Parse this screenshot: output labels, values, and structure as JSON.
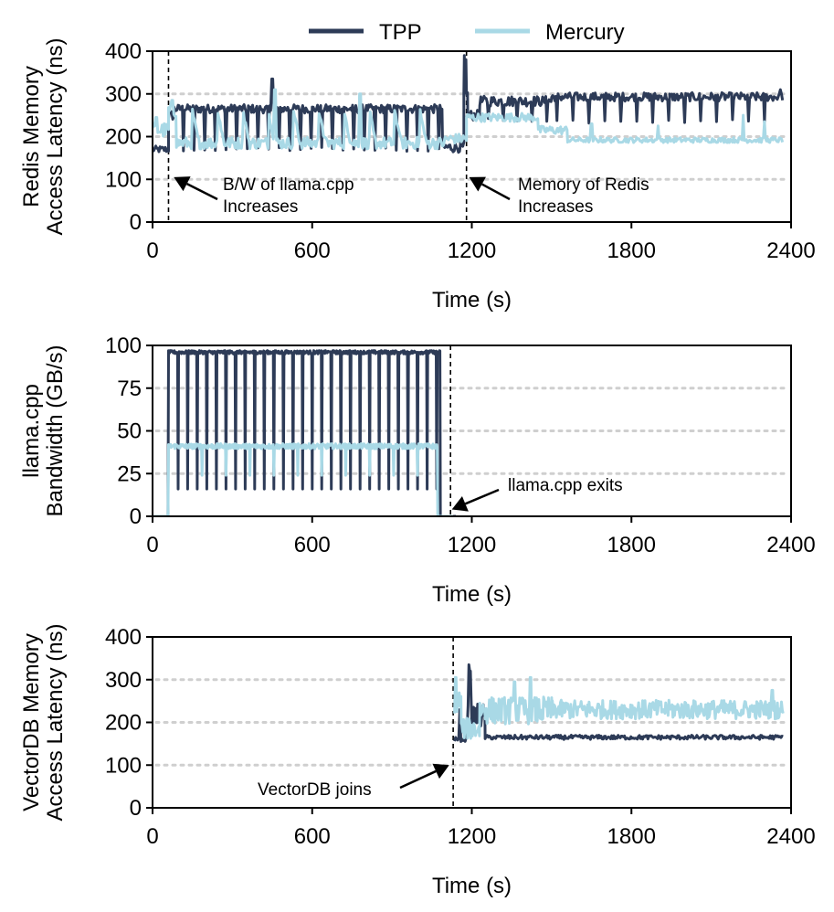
{
  "legend": {
    "tpp": "TPP",
    "mercury": "Mercury"
  },
  "colors": {
    "tpp": "#2d3b57",
    "mercury": "#a9d9e6",
    "grid": "#cfcfcf"
  },
  "chart_data": [
    {
      "id": "redis",
      "type": "line",
      "xlabel": "Time (s)",
      "ylabel_lines": [
        "Redis Memory",
        "Access Latency (ns)"
      ],
      "xlim": [
        0,
        2400
      ],
      "ylim": [
        0,
        400
      ],
      "xticks": [
        0,
        600,
        1200,
        1800,
        2400
      ],
      "yticks": [
        0,
        100,
        200,
        300,
        400
      ],
      "gridlines": [
        100,
        200,
        300
      ],
      "vlines": [
        60,
        1180
      ],
      "series": [
        {
          "name": "TPP",
          "style": "tpp",
          "segments": [
            {
              "x0": 0,
              "x1": 60,
              "base": 170,
              "noise": 8,
              "spikes": [],
              "step": 4
            },
            {
              "x0": 60,
              "x1": 80,
              "base": 250,
              "noise": 12,
              "spikes": [],
              "step": 4
            },
            {
              "x0": 80,
              "x1": 1090,
              "base": 265,
              "noise": 10,
              "dips": {
                "start": 115,
                "period": 40,
                "to": 170
              },
              "spikes": [
                [
                  450,
                  335
                ]
              ],
              "step": 4
            },
            {
              "x0": 1090,
              "x1": 1170,
              "base": 175,
              "noise": 12,
              "spikes": [],
              "step": 4
            },
            {
              "x0": 1170,
              "x1": 1185,
              "base": 300,
              "noise": 5,
              "spikes": [
                [
                  1172,
                  390
                ],
                [
                  1178,
                  380
                ]
              ],
              "step": 2
            },
            {
              "x0": 1185,
              "x1": 1230,
              "base": 250,
              "noise": 12,
              "spikes": [],
              "step": 4
            },
            {
              "x0": 1230,
              "x1": 1500,
              "base": 283,
              "noise": 12,
              "dips": {
                "start": 1260,
                "period": 55,
                "to": 240
              },
              "spikes": [],
              "step": 4
            },
            {
              "x0": 1500,
              "x1": 2370,
              "base": 293,
              "noise": 10,
              "dips": {
                "start": 1520,
                "period": 60,
                "to": 235
              },
              "spikes": [
                [
                  2360,
                  310
                ]
              ],
              "step": 4
            }
          ]
        },
        {
          "name": "Mercury",
          "style": "mercury",
          "segments": [
            {
              "x0": 0,
              "x1": 60,
              "base": 215,
              "noise": 18,
              "spikes": [
                [
                  15,
                  245
                ]
              ],
              "step": 4
            },
            {
              "x0": 60,
              "x1": 90,
              "base": 260,
              "noise": 15,
              "spikes": [
                [
                  75,
                  285
                ]
              ],
              "step": 4
            },
            {
              "x0": 90,
              "x1": 1100,
              "base": 185,
              "noise": 14,
              "peaks": {
                "start": 150,
                "period": 95,
                "to": 260
              },
              "spikes": [
                [
                  460,
                  310
                ],
                [
                  780,
                  300
                ]
              ],
              "step": 4
            },
            {
              "x0": 1100,
              "x1": 1180,
              "base": 195,
              "noise": 12,
              "spikes": [],
              "step": 4
            },
            {
              "x0": 1180,
              "x1": 1450,
              "base": 245,
              "noise": 10,
              "spikes": [],
              "step": 4
            },
            {
              "x0": 1450,
              "x1": 1560,
              "base": 215,
              "noise": 10,
              "spikes": [],
              "step": 4
            },
            {
              "x0": 1560,
              "x1": 2370,
              "base": 192,
              "noise": 6,
              "spikes": [
                [
                  1650,
                  230
                ],
                [
                  1900,
                  225
                ],
                [
                  2220,
                  250
                ],
                [
                  2300,
                  235
                ]
              ],
              "step": 4
            }
          ]
        }
      ],
      "annotations": [
        {
          "lines": [
            "B/W of llama.cpp",
            "Increases"
          ],
          "target": [
            80,
            105
          ]
        },
        {
          "lines": [
            "Memory of Redis",
            "Increases"
          ],
          "target": [
            1190,
            105
          ]
        }
      ]
    },
    {
      "id": "llama",
      "type": "line",
      "xlabel": "Time (s)",
      "ylabel_lines": [
        "llama.cpp",
        "Bandwidth (GB/s)"
      ],
      "xlim": [
        0,
        2400
      ],
      "ylim": [
        0,
        100
      ],
      "xticks": [
        0,
        600,
        1200,
        1800,
        2400
      ],
      "yticks": [
        0,
        25,
        50,
        75,
        100
      ],
      "gridlines": [
        25,
        50,
        75
      ],
      "vlines": [
        1120
      ],
      "series": [
        {
          "name": "TPP",
          "style": "tpp",
          "pulse": {
            "x0": 60,
            "x1": 1080,
            "high": 96,
            "low": 16,
            "start": 95,
            "period": 36,
            "noise": 1
          }
        },
        {
          "name": "Mercury",
          "style": "mercury",
          "pulse": {
            "x0": 60,
            "x1": 1070,
            "high": 41,
            "low": 24,
            "start": 185,
            "period": 90,
            "noise": 1.5
          }
        }
      ],
      "annotations": [
        {
          "lines": [
            "llama.cpp exits"
          ],
          "target": [
            1125,
            4
          ]
        }
      ]
    },
    {
      "id": "vectordb",
      "type": "line",
      "xlabel": "Time (s)",
      "ylabel_lines": [
        "VectorDB Memory",
        "Access Latency (ns)"
      ],
      "xlim": [
        0,
        2400
      ],
      "ylim": [
        0,
        400
      ],
      "xticks": [
        0,
        600,
        1200,
        1800,
        2400
      ],
      "yticks": [
        0,
        100,
        200,
        300,
        400
      ],
      "gridlines": [
        100,
        200,
        300
      ],
      "vlines": [
        1130
      ],
      "series": [
        {
          "name": "TPP",
          "style": "tpp",
          "segments": [
            {
              "x0": 1135,
              "x1": 1180,
              "base": 160,
              "noise": 5,
              "spikes": [
                [
                  1155,
                  230
                ]
              ],
              "step": 4
            },
            {
              "x0": 1180,
              "x1": 1250,
              "base": 215,
              "noise": 30,
              "spikes": [
                [
                  1190,
                  335
                ],
                [
                  1194,
                  320
                ]
              ],
              "step": 3
            },
            {
              "x0": 1250,
              "x1": 2370,
              "base": 165,
              "noise": 5,
              "spikes": [],
              "step": 4
            }
          ]
        },
        {
          "name": "Mercury",
          "style": "mercury",
          "segments": [
            {
              "x0": 1135,
              "x1": 1160,
              "base": 250,
              "noise": 30,
              "spikes": [
                [
                  1140,
                  305
                ]
              ],
              "step": 3
            },
            {
              "x0": 1160,
              "x1": 1230,
              "base": 185,
              "noise": 25,
              "spikes": [],
              "step": 3
            },
            {
              "x0": 1230,
              "x1": 1500,
              "base": 228,
              "noise": 32,
              "spikes": [
                [
                  1420,
                  305
                ],
                [
                  1360,
                  295
                ]
              ],
              "step": 3
            },
            {
              "x0": 1500,
              "x1": 2370,
              "base": 230,
              "noise": 22,
              "spikes": [
                [
                  2330,
                  275
                ]
              ],
              "step": 3
            }
          ]
        }
      ],
      "annotations": [
        {
          "lines": [
            "VectorDB joins"
          ],
          "target": [
            1115,
            100
          ]
        }
      ]
    }
  ]
}
